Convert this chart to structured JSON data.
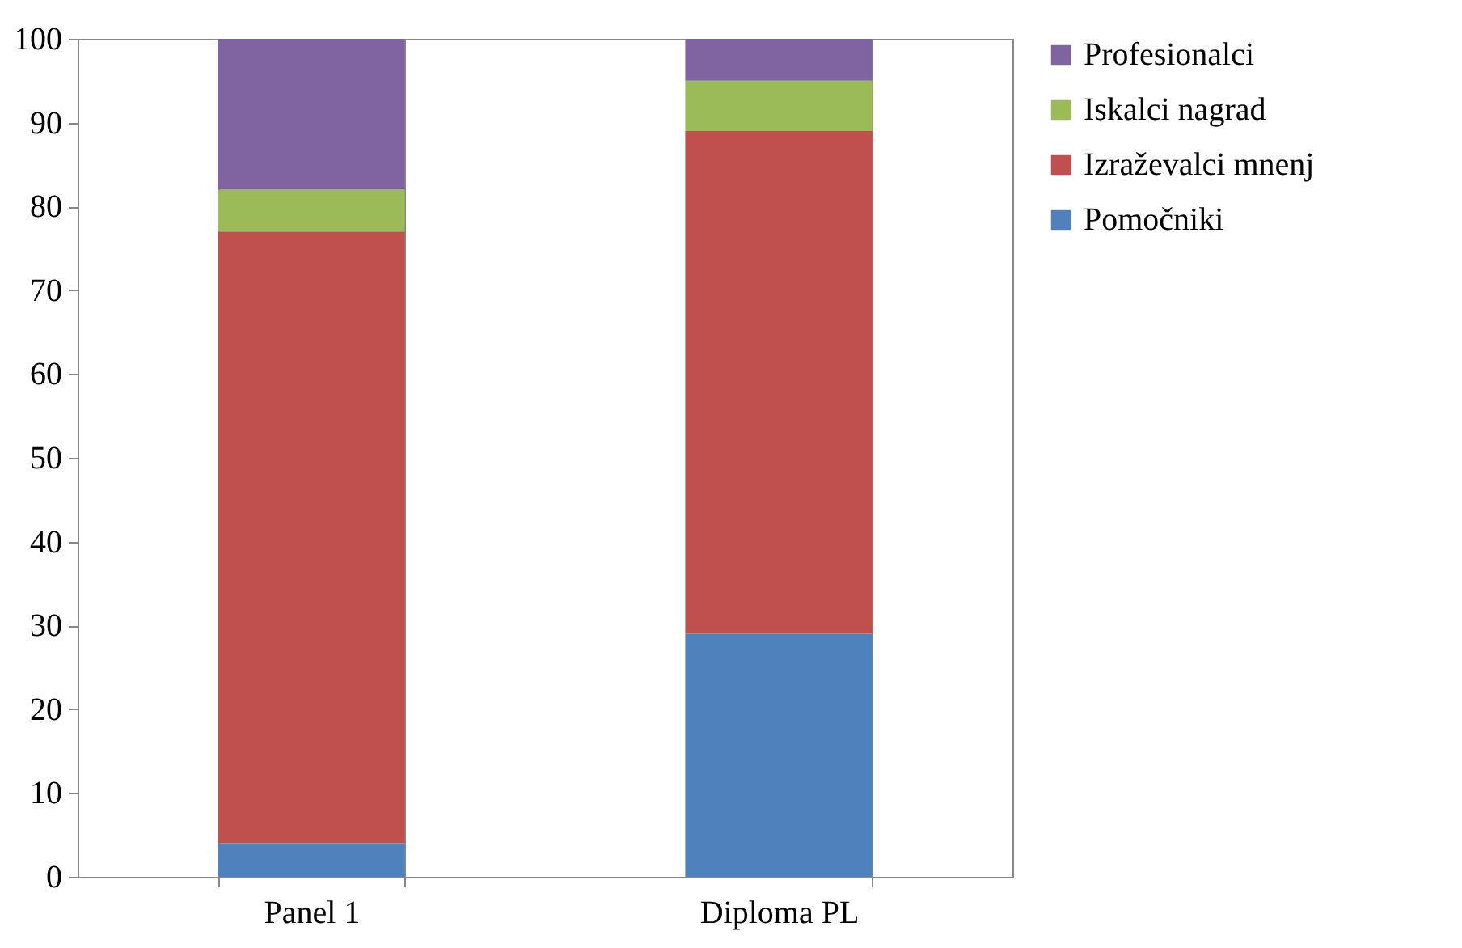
{
  "chart_data": {
    "type": "bar",
    "stacked": true,
    "categories": [
      "Panel 1",
      "Diploma PL"
    ],
    "series": [
      {
        "name": "Pomočniki",
        "color": "#4f81bd",
        "values": [
          4,
          29
        ]
      },
      {
        "name": "Izraževalci mnenj",
        "color": "#c0504d",
        "values": [
          73,
          60
        ]
      },
      {
        "name": "Iskalci nagrad",
        "color": "#9bbb59",
        "values": [
          5,
          6
        ]
      },
      {
        "name": "Profesionalci",
        "color": "#8064a2",
        "values": [
          18,
          5
        ]
      }
    ],
    "ylim": [
      0,
      100
    ],
    "yticks": [
      0,
      10,
      20,
      30,
      40,
      50,
      60,
      70,
      80,
      90,
      100
    ],
    "grid": "x",
    "legend": "right"
  }
}
